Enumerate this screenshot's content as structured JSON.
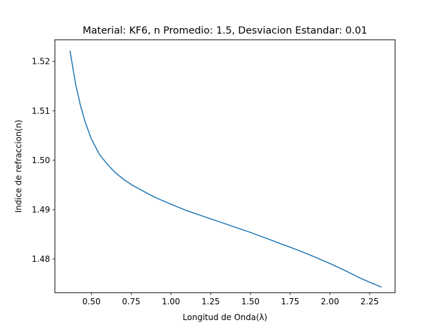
{
  "chart_data": {
    "type": "line",
    "title": "Material: KF6, n Promedio: 1.5, Desviacion Estandar: 0.01",
    "xlabel": "Longitud de Onda(λ)",
    "ylabel": "Indice de refraccion(n)",
    "xlim": [
      0.27,
      2.41
    ],
    "ylim": [
      1.4732,
      1.5244
    ],
    "xticks": [
      0.5,
      0.75,
      1.0,
      1.25,
      1.5,
      1.75,
      2.0,
      2.25
    ],
    "xtick_labels": [
      "0.50",
      "0.75",
      "1.00",
      "1.25",
      "1.50",
      "1.75",
      "2.00",
      "2.25"
    ],
    "yticks": [
      1.48,
      1.49,
      1.5,
      1.51,
      1.52
    ],
    "ytick_labels": [
      "1.48",
      "1.49",
      "1.50",
      "1.51",
      "1.52"
    ],
    "grid": false,
    "legend": "none",
    "line_color": "#1f77b4",
    "series": [
      {
        "x": [
          0.365,
          0.4,
          0.43,
          0.46,
          0.5,
          0.55,
          0.6,
          0.65,
          0.7,
          0.75,
          0.8,
          0.9,
          1.0,
          1.1,
          1.2,
          1.3,
          1.4,
          1.5,
          1.6,
          1.7,
          1.8,
          1.9,
          2.0,
          2.1,
          2.2,
          2.325
        ],
        "y": [
          1.5222,
          1.5155,
          1.5112,
          1.5078,
          1.5043,
          1.5012,
          1.4992,
          1.4975,
          1.4962,
          1.4951,
          1.4942,
          1.4925,
          1.4911,
          1.4898,
          1.4887,
          1.4876,
          1.4865,
          1.4854,
          1.4842,
          1.483,
          1.4818,
          1.4805,
          1.4791,
          1.4776,
          1.476,
          1.4743
        ]
      }
    ]
  }
}
